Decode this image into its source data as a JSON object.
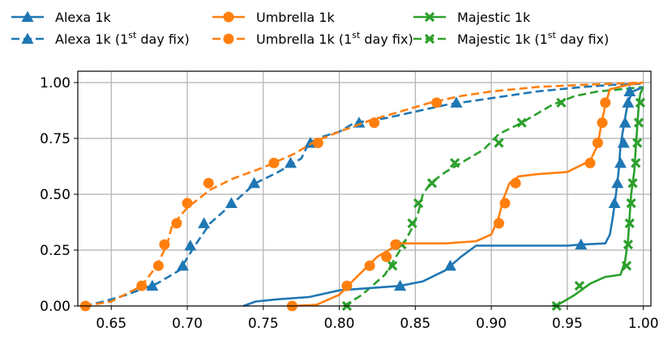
{
  "chart_data": {
    "type": "line",
    "title": "",
    "xlabel": "",
    "ylabel": "",
    "xlim": [
      0.628,
      1.005
    ],
    "ylim": [
      0.0,
      1.0
    ],
    "grid": true,
    "legend_position": "top",
    "x_ticks": [
      "0.65",
      "0.70",
      "0.75",
      "0.80",
      "0.85",
      "0.90",
      "0.95",
      "1.00"
    ],
    "y_ticks": [
      "0.00",
      "0.25",
      "0.50",
      "0.75",
      "1.00"
    ],
    "legend": [
      {
        "label": "Alexa 1k",
        "color": "#1f77b4",
        "dash": false,
        "marker": "triangle"
      },
      {
        "label": "Umbrella 1k",
        "color": "#ff7f0e",
        "dash": false,
        "marker": "circle"
      },
      {
        "label": "Majestic 1k",
        "color": "#2ca02c",
        "dash": false,
        "marker": "x"
      },
      {
        "label": "Alexa 1k (1st day fix)",
        "base": "Alexa 1k (1",
        "sup": "st",
        "rest": " day fix)",
        "color": "#1f77b4",
        "dash": true,
        "marker": "triangle"
      },
      {
        "label": "Umbrella 1k (1st day fix)",
        "base": "Umbrella 1k (1",
        "sup": "st",
        "rest": " day fix)",
        "color": "#ff7f0e",
        "dash": true,
        "marker": "circle"
      },
      {
        "label": "Majestic 1k (1st day fix)",
        "base": "Majestic 1k (1",
        "sup": "st",
        "rest": " day fix)",
        "color": "#2ca02c",
        "dash": true,
        "marker": "x"
      }
    ],
    "series": [
      {
        "name": "Alexa 1k",
        "color": "#1f77b4",
        "dash": false,
        "marker": "triangle",
        "points": [
          [
            0.737,
            0.0
          ],
          [
            0.745,
            0.02
          ],
          [
            0.76,
            0.03
          ],
          [
            0.78,
            0.04
          ],
          [
            0.8,
            0.07
          ],
          [
            0.82,
            0.08
          ],
          [
            0.84,
            0.09
          ],
          [
            0.855,
            0.11
          ],
          [
            0.87,
            0.16
          ],
          [
            0.88,
            0.22
          ],
          [
            0.89,
            0.27
          ],
          [
            0.91,
            0.27
          ],
          [
            0.95,
            0.27
          ],
          [
            0.96,
            0.275
          ],
          [
            0.975,
            0.28
          ],
          [
            0.978,
            0.32
          ],
          [
            0.98,
            0.4
          ],
          [
            0.982,
            0.5
          ],
          [
            0.984,
            0.62
          ],
          [
            0.985,
            0.72
          ],
          [
            0.987,
            0.8
          ],
          [
            0.989,
            0.88
          ],
          [
            0.991,
            0.93
          ],
          [
            0.993,
            0.96
          ],
          [
            1.0,
            0.98
          ]
        ],
        "markers": [
          [
            0.84,
            0.09
          ],
          [
            0.873,
            0.18
          ],
          [
            0.959,
            0.275
          ],
          [
            0.981,
            0.46
          ],
          [
            0.983,
            0.55
          ],
          [
            0.985,
            0.64
          ],
          [
            0.987,
            0.73
          ],
          [
            0.988,
            0.82
          ],
          [
            0.99,
            0.91
          ],
          [
            0.991,
            0.96
          ]
        ]
      },
      {
        "name": "Umbrella 1k",
        "color": "#ff7f0e",
        "dash": false,
        "marker": "circle",
        "points": [
          [
            0.768,
            0.0
          ],
          [
            0.785,
            0.005
          ],
          [
            0.8,
            0.05
          ],
          [
            0.81,
            0.12
          ],
          [
            0.825,
            0.22
          ],
          [
            0.835,
            0.26
          ],
          [
            0.84,
            0.28
          ],
          [
            0.87,
            0.28
          ],
          [
            0.89,
            0.29
          ],
          [
            0.9,
            0.32
          ],
          [
            0.905,
            0.4
          ],
          [
            0.908,
            0.48
          ],
          [
            0.912,
            0.55
          ],
          [
            0.918,
            0.58
          ],
          [
            0.93,
            0.59
          ],
          [
            0.95,
            0.6
          ],
          [
            0.965,
            0.65
          ],
          [
            0.97,
            0.72
          ],
          [
            0.972,
            0.8
          ],
          [
            0.975,
            0.9
          ],
          [
            0.978,
            0.97
          ],
          [
            0.99,
            0.99
          ],
          [
            1.0,
            1.0
          ]
        ],
        "markers": [
          [
            0.769,
            0.0
          ],
          [
            0.805,
            0.09
          ],
          [
            0.82,
            0.18
          ],
          [
            0.831,
            0.22
          ],
          [
            0.837,
            0.275
          ],
          [
            0.905,
            0.37
          ],
          [
            0.909,
            0.46
          ],
          [
            0.916,
            0.55
          ],
          [
            0.965,
            0.64
          ],
          [
            0.97,
            0.73
          ],
          [
            0.973,
            0.82
          ],
          [
            0.975,
            0.91
          ]
        ]
      },
      {
        "name": "Majestic 1k",
        "color": "#2ca02c",
        "dash": false,
        "marker": "x",
        "points": [
          [
            0.94,
            0.0
          ],
          [
            0.945,
            0.01
          ],
          [
            0.955,
            0.05
          ],
          [
            0.965,
            0.1
          ],
          [
            0.975,
            0.13
          ],
          [
            0.985,
            0.14
          ],
          [
            0.988,
            0.2
          ],
          [
            0.99,
            0.3
          ],
          [
            0.991,
            0.4
          ],
          [
            0.992,
            0.5
          ],
          [
            0.994,
            0.6
          ],
          [
            0.995,
            0.7
          ],
          [
            0.996,
            0.8
          ],
          [
            0.997,
            0.9
          ],
          [
            0.998,
            0.95
          ],
          [
            1.0,
            0.98
          ]
        ],
        "markers": [
          [
            0.943,
            0.0
          ],
          [
            0.958,
            0.09
          ],
          [
            0.989,
            0.18
          ],
          [
            0.99,
            0.275
          ],
          [
            0.991,
            0.37
          ],
          [
            0.992,
            0.46
          ],
          [
            0.993,
            0.55
          ],
          [
            0.995,
            0.64
          ],
          [
            0.996,
            0.73
          ],
          [
            0.997,
            0.82
          ],
          [
            0.998,
            0.91
          ]
        ]
      },
      {
        "name": "Alexa 1k (1st day fix)",
        "color": "#1f77b4",
        "dash": true,
        "marker": "triangle",
        "points": [
          [
            0.632,
            0.0
          ],
          [
            0.645,
            0.02
          ],
          [
            0.66,
            0.05
          ],
          [
            0.68,
            0.1
          ],
          [
            0.695,
            0.16
          ],
          [
            0.705,
            0.27
          ],
          [
            0.715,
            0.37
          ],
          [
            0.73,
            0.46
          ],
          [
            0.745,
            0.55
          ],
          [
            0.76,
            0.6
          ],
          [
            0.775,
            0.66
          ],
          [
            0.78,
            0.73
          ],
          [
            0.79,
            0.76
          ],
          [
            0.8,
            0.78
          ],
          [
            0.81,
            0.82
          ],
          [
            0.83,
            0.84
          ],
          [
            0.85,
            0.87
          ],
          [
            0.87,
            0.9
          ],
          [
            0.9,
            0.93
          ],
          [
            0.93,
            0.96
          ],
          [
            0.96,
            0.98
          ],
          [
            0.98,
            0.99
          ],
          [
            1.0,
            0.995
          ]
        ],
        "markers": [
          [
            0.677,
            0.09
          ],
          [
            0.697,
            0.18
          ],
          [
            0.702,
            0.27
          ],
          [
            0.711,
            0.37
          ],
          [
            0.729,
            0.46
          ],
          [
            0.744,
            0.55
          ],
          [
            0.768,
            0.64
          ],
          [
            0.781,
            0.73
          ],
          [
            0.813,
            0.82
          ],
          [
            0.877,
            0.91
          ]
        ]
      },
      {
        "name": "Umbrella 1k (1st day fix)",
        "color": "#ff7f0e",
        "dash": true,
        "marker": "circle",
        "points": [
          [
            0.632,
            0.0
          ],
          [
            0.65,
            0.02
          ],
          [
            0.67,
            0.09
          ],
          [
            0.68,
            0.18
          ],
          [
            0.687,
            0.28
          ],
          [
            0.69,
            0.36
          ],
          [
            0.7,
            0.44
          ],
          [
            0.715,
            0.52
          ],
          [
            0.73,
            0.57
          ],
          [
            0.75,
            0.62
          ],
          [
            0.77,
            0.68
          ],
          [
            0.785,
            0.74
          ],
          [
            0.8,
            0.78
          ],
          [
            0.82,
            0.83
          ],
          [
            0.84,
            0.87
          ],
          [
            0.86,
            0.91
          ],
          [
            0.88,
            0.94
          ],
          [
            0.9,
            0.96
          ],
          [
            0.93,
            0.98
          ],
          [
            0.96,
            0.99
          ],
          [
            1.0,
            1.0
          ]
        ],
        "markers": [
          [
            0.633,
            0.0
          ],
          [
            0.67,
            0.09
          ],
          [
            0.681,
            0.18
          ],
          [
            0.685,
            0.275
          ],
          [
            0.693,
            0.37
          ],
          [
            0.7,
            0.46
          ],
          [
            0.714,
            0.55
          ],
          [
            0.757,
            0.64
          ],
          [
            0.786,
            0.73
          ],
          [
            0.823,
            0.82
          ],
          [
            0.864,
            0.91
          ]
        ]
      },
      {
        "name": "Majestic 1k (1st day fix)",
        "color": "#2ca02c",
        "dash": true,
        "marker": "x",
        "points": [
          [
            0.803,
            0.0
          ],
          [
            0.815,
            0.05
          ],
          [
            0.83,
            0.14
          ],
          [
            0.84,
            0.25
          ],
          [
            0.848,
            0.35
          ],
          [
            0.852,
            0.42
          ],
          [
            0.855,
            0.5
          ],
          [
            0.86,
            0.55
          ],
          [
            0.87,
            0.6
          ],
          [
            0.88,
            0.64
          ],
          [
            0.895,
            0.7
          ],
          [
            0.905,
            0.77
          ],
          [
            0.92,
            0.82
          ],
          [
            0.93,
            0.86
          ],
          [
            0.94,
            0.9
          ],
          [
            0.955,
            0.94
          ],
          [
            0.97,
            0.96
          ],
          [
            0.985,
            0.97
          ],
          [
            1.0,
            0.98
          ]
        ],
        "markers": [
          [
            0.805,
            0.0
          ],
          [
            0.835,
            0.18
          ],
          [
            0.841,
            0.275
          ],
          [
            0.848,
            0.37
          ],
          [
            0.852,
            0.46
          ],
          [
            0.861,
            0.55
          ],
          [
            0.876,
            0.64
          ],
          [
            0.905,
            0.73
          ],
          [
            0.92,
            0.82
          ],
          [
            0.946,
            0.91
          ]
        ]
      }
    ]
  }
}
